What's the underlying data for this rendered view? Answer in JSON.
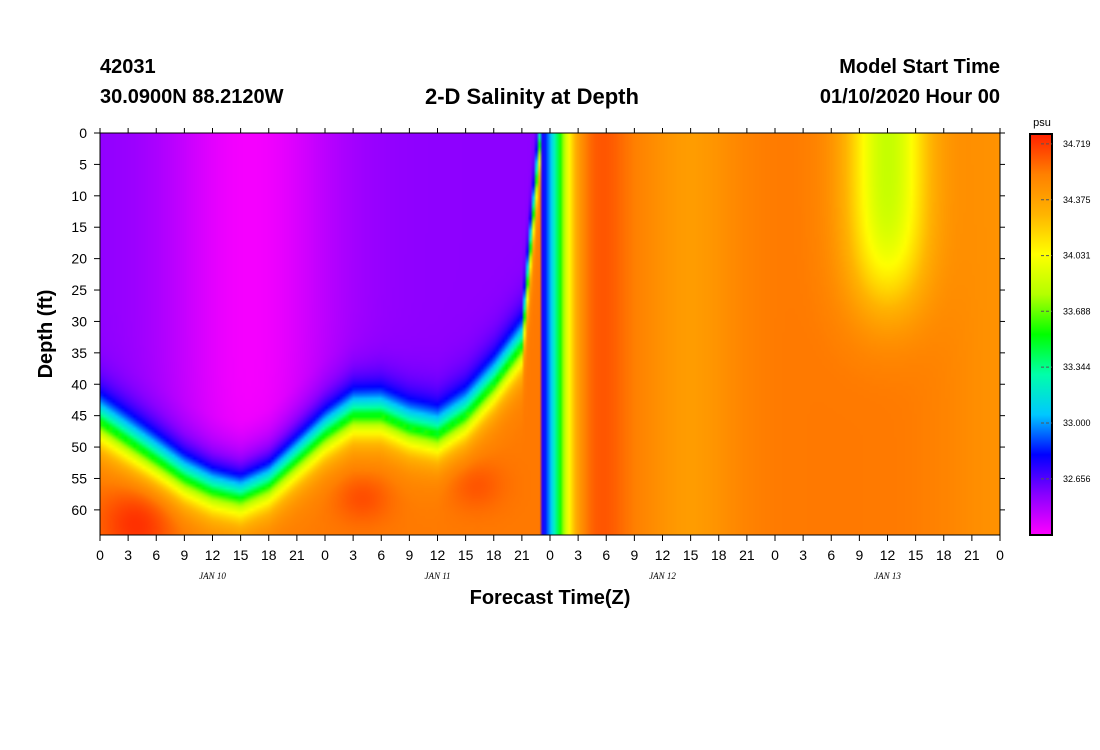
{
  "header": {
    "station_id": "42031",
    "location": "30.0900N 88.2120W",
    "title": "2-D Salinity at Depth",
    "model_start_label": "Model Start Time",
    "model_start_value": "01/10/2020 Hour 00"
  },
  "chart_data": {
    "type": "heatmap",
    "title": "2-D Salinity at Depth",
    "xlabel": "Forecast Time(Z)",
    "ylabel": "Depth (ft)",
    "x_hours": [
      0,
      3,
      6,
      9,
      12,
      15,
      18,
      21,
      24,
      27,
      30,
      33,
      36,
      39,
      42,
      45,
      48,
      51,
      54,
      57,
      60,
      63,
      66,
      69,
      72,
      75,
      78,
      81,
      84,
      87,
      90,
      93,
      96
    ],
    "x_tick_labels": [
      "0",
      "3",
      "6",
      "9",
      "12",
      "15",
      "18",
      "21",
      "0",
      "3",
      "6",
      "9",
      "12",
      "15",
      "18",
      "21",
      "0",
      "3",
      "6",
      "9",
      "12",
      "15",
      "18",
      "21",
      "0",
      "3",
      "6",
      "9",
      "12",
      "15",
      "18",
      "21",
      "0"
    ],
    "date_labels": [
      {
        "hour": 12,
        "label": "JAN 10"
      },
      {
        "hour": 36,
        "label": "JAN 11"
      },
      {
        "hour": 60,
        "label": "JAN 12"
      },
      {
        "hour": 84,
        "label": "JAN 13"
      }
    ],
    "xlim": [
      0,
      96
    ],
    "y_ticks": [
      0,
      5,
      10,
      15,
      20,
      25,
      30,
      35,
      40,
      45,
      50,
      55,
      60
    ],
    "y_tick_labels": [
      "0",
      "5",
      "10",
      "15",
      "20",
      "25",
      "30",
      "35",
      "40",
      "45",
      "50",
      "55",
      "60"
    ],
    "ylim": [
      0,
      64
    ],
    "y_inverted": true,
    "colorbar": {
      "unit": "psu",
      "ticks": [
        34.719,
        34.375,
        34.031,
        33.688,
        33.344,
        33.0,
        32.656
      ],
      "tick_labels": [
        "34.719",
        "34.375",
        "34.031",
        "33.688",
        "33.344",
        "33.000",
        "32.656"
      ],
      "range": [
        32.31,
        34.78
      ],
      "colors": [
        "#ff00ff",
        "#8a00ff",
        "#0000ff",
        "#00c8ff",
        "#00ffaa",
        "#00ff00",
        "#b4ff00",
        "#ffff00",
        "#ffb400",
        "#ff8000",
        "#ff2000"
      ]
    },
    "fresh_layer_bottom_depth": [
      {
        "hour": 0,
        "depth": 46
      },
      {
        "hour": 3,
        "depth": 49
      },
      {
        "hour": 6,
        "depth": 52
      },
      {
        "hour": 9,
        "depth": 55
      },
      {
        "hour": 12,
        "depth": 57
      },
      {
        "hour": 15,
        "depth": 58
      },
      {
        "hour": 18,
        "depth": 56
      },
      {
        "hour": 21,
        "depth": 52
      },
      {
        "hour": 24,
        "depth": 48
      },
      {
        "hour": 27,
        "depth": 45
      },
      {
        "hour": 30,
        "depth": 45
      },
      {
        "hour": 33,
        "depth": 47
      },
      {
        "hour": 36,
        "depth": 48
      },
      {
        "hour": 39,
        "depth": 45
      },
      {
        "hour": 42,
        "depth": 40
      },
      {
        "hour": 45,
        "depth": 34
      },
      {
        "hour": 47,
        "depth": 0
      }
    ],
    "fresh_core_value": 32.45,
    "salty_background_value": 34.55,
    "green_patch": {
      "hour_center": 84,
      "depth_bottom": 28,
      "min_value": 33.85
    }
  }
}
